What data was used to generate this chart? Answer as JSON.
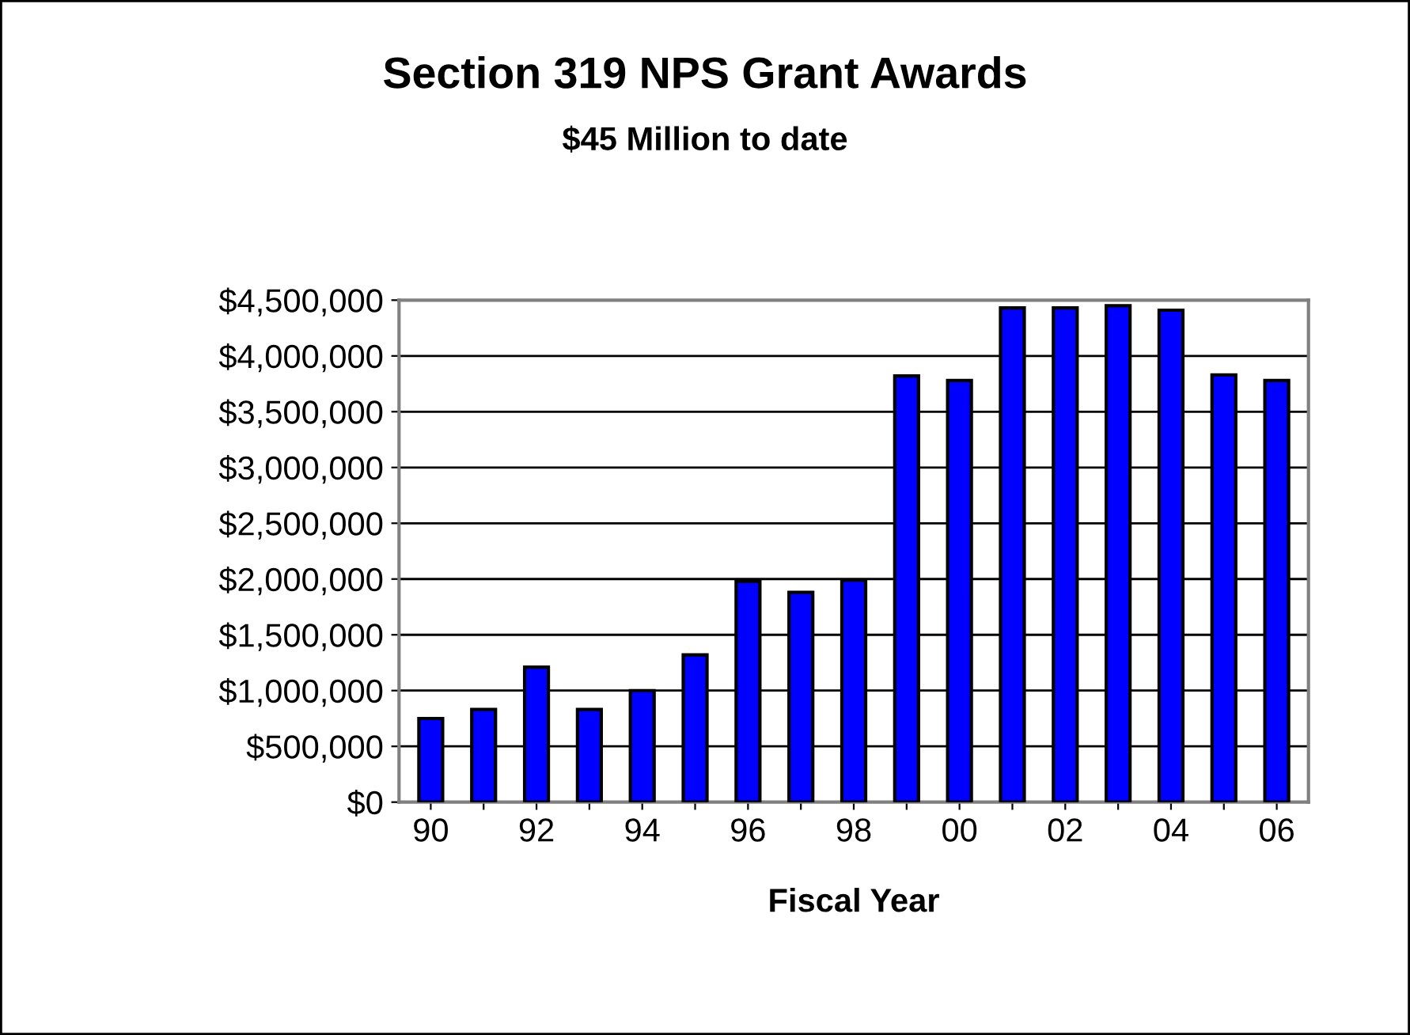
{
  "chart_data": {
    "type": "bar",
    "title": "Section 319 NPS Grant Awards",
    "subtitle": "$45 Million to date",
    "xlabel": "Fiscal Year",
    "categories": [
      "90",
      null,
      "92",
      null,
      "94",
      null,
      "96",
      null,
      "98",
      null,
      "00",
      null,
      "02",
      null,
      "04",
      null,
      "06"
    ],
    "values": [
      750000,
      830000,
      1210000,
      830000,
      1000000,
      1320000,
      1980000,
      1880000,
      1990000,
      3820000,
      3780000,
      4430000,
      4430000,
      4450000,
      4410000,
      3830000,
      3780000
    ],
    "color": "#0000ff",
    "ylim": [
      0,
      4500000
    ],
    "yticks": [
      {
        "value": 0,
        "label": "$0"
      },
      {
        "value": 500000,
        "label": "$500,000"
      },
      {
        "value": 1000000,
        "label": "$1,000,000"
      },
      {
        "value": 1500000,
        "label": "$1,500,000"
      },
      {
        "value": 2000000,
        "label": "$2,000,000"
      },
      {
        "value": 2500000,
        "label": "$2,500,000"
      },
      {
        "value": 3000000,
        "label": "$3,000,000"
      },
      {
        "value": 3500000,
        "label": "$3,500,000"
      },
      {
        "value": 4000000,
        "label": "$4,000,000"
      },
      {
        "value": 4500000,
        "label": "$4,500,000"
      }
    ],
    "grid": "y"
  }
}
